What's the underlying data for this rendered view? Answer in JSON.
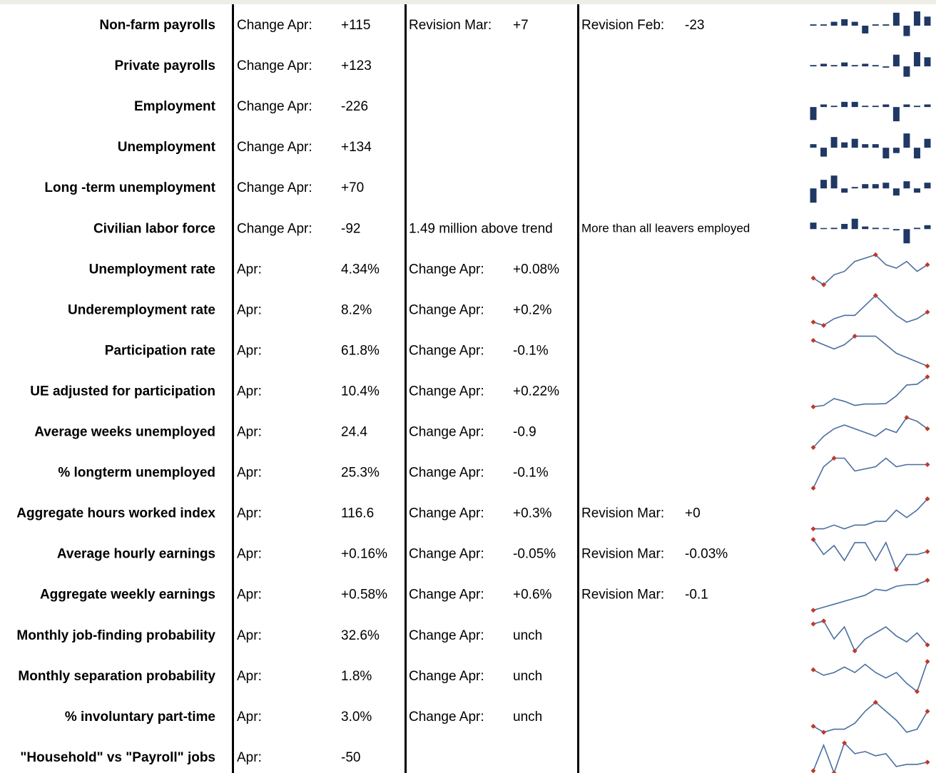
{
  "rows": [
    {
      "label": "Non-farm payrolls",
      "c2": [
        "Change Apr:",
        "+115"
      ],
      "c3": [
        "Revision Mar:",
        "+7"
      ],
      "c4": [
        "Revision Feb:",
        "-23"
      ],
      "spark": {
        "type": "bar",
        "values": [
          1,
          1,
          3,
          5,
          3,
          -6,
          1,
          1,
          10,
          -8,
          11,
          7
        ]
      }
    },
    {
      "label": "Private payrolls",
      "c2": [
        "Change Apr:",
        "+123"
      ],
      "spark": {
        "type": "bar",
        "values": [
          1,
          2,
          1,
          3,
          1,
          2,
          1,
          -1,
          9,
          -8,
          11,
          7
        ]
      }
    },
    {
      "label": "Employment",
      "c2": [
        "Change Apr:",
        "-226"
      ],
      "spark": {
        "type": "bar",
        "values": [
          -10,
          2,
          1,
          4,
          4,
          1,
          1,
          2,
          -11,
          2,
          1,
          2
        ]
      }
    },
    {
      "label": "Unemployment",
      "c2": [
        "Change Apr:",
        "+134"
      ],
      "spark": {
        "type": "bar",
        "values": [
          2,
          -5,
          6,
          3,
          5,
          2,
          2,
          -6,
          -3,
          8,
          -6,
          5
        ]
      }
    },
    {
      "label": "Long -term unemployment",
      "c2": [
        "Change Apr:",
        "+70"
      ],
      "spark": {
        "type": "bar",
        "values": [
          -10,
          6,
          9,
          -3,
          1,
          3,
          3,
          4,
          -5,
          5,
          -3,
          4
        ]
      }
    },
    {
      "label": "Civilian labor force",
      "c2": [
        "Change Apr:",
        "-92"
      ],
      "c3": [
        "1.49 million above trend"
      ],
      "c4": [
        "More than all leavers employed"
      ],
      "spark": {
        "type": "bar",
        "values": [
          5,
          0,
          1,
          4,
          8,
          2,
          1,
          0,
          -1,
          -11,
          1,
          3
        ]
      }
    },
    {
      "label": "Unemployment rate",
      "c2": [
        "Apr:",
        "4.34%"
      ],
      "c3": [
        "Change Apr:",
        "+0.08%"
      ],
      "spark": {
        "type": "line",
        "values": [
          3,
          1,
          4,
          5,
          8,
          9,
          10,
          7,
          6,
          8,
          5,
          7
        ]
      }
    },
    {
      "label": "Underemployment rate",
      "c2": [
        "Apr:",
        "8.2%"
      ],
      "c3": [
        "Change Apr:",
        "+0.2%"
      ],
      "spark": {
        "type": "line",
        "values": [
          2,
          1,
          3,
          4,
          4,
          7,
          10,
          7,
          4,
          2,
          3,
          5
        ]
      }
    },
    {
      "label": "Participation rate",
      "c2": [
        "Apr:",
        "61.8%"
      ],
      "c3": [
        "Change Apr:",
        "-0.1%"
      ],
      "spark": {
        "type": "line",
        "values": [
          10,
          9,
          8,
          9,
          11,
          11,
          11,
          9,
          7,
          6,
          5,
          4
        ]
      }
    },
    {
      "label": "UE adjusted for participation",
      "c2": [
        "Apr:",
        "10.4%"
      ],
      "c3": [
        "Change Apr:",
        "+0.22%"
      ],
      "spark": {
        "type": "line",
        "values": [
          1,
          1.5,
          4,
          3,
          1.5,
          2,
          2,
          2.2,
          5,
          9,
          9.3,
          12
        ]
      }
    },
    {
      "label": "Average weeks unemployed",
      "c2": [
        "Apr:",
        "24.4"
      ],
      "c3": [
        "Change Apr:",
        "-0.9"
      ],
      "spark": {
        "type": "line",
        "values": [
          1,
          4,
          6,
          7,
          6,
          5,
          4,
          6,
          5,
          9,
          8,
          6
        ]
      }
    },
    {
      "label": "% longterm unemployed",
      "c2": [
        "Apr:",
        "25.3%"
      ],
      "c3": [
        "Change Apr:",
        "-0.1%"
      ],
      "spark": {
        "type": "line",
        "values": [
          1,
          6,
          8,
          8,
          5,
          5.5,
          6,
          8,
          6,
          6.5,
          6.5,
          6.5
        ]
      }
    },
    {
      "label": "Aggregate hours worked index",
      "c2": [
        "Apr:",
        "116.6"
      ],
      "c3": [
        "Change Apr:",
        "+0.3%"
      ],
      "c4": [
        "Revision Mar:",
        "+0"
      ],
      "spark": {
        "type": "line",
        "values": [
          1,
          1,
          2,
          1,
          2,
          2,
          3,
          3,
          6,
          4,
          6,
          9
        ]
      }
    },
    {
      "label": "Average hourly earnings",
      "c2": [
        "Apr:",
        "+0.16%"
      ],
      "c3": [
        "Change Apr:",
        "-0.05%"
      ],
      "c4": [
        "Revision Mar:",
        "-0.03%"
      ],
      "spark": {
        "type": "line",
        "values": [
          8,
          3,
          6,
          1,
          7,
          7,
          1,
          7,
          -2,
          3,
          3,
          4
        ]
      }
    },
    {
      "label": "Aggregate weekly earnings",
      "c2": [
        "Apr:",
        "+0.58%"
      ],
      "c3": [
        "Change Apr:",
        "+0.6%"
      ],
      "c4": [
        "Revision Mar:",
        "-0.1"
      ],
      "spark": {
        "type": "line",
        "values": [
          1,
          2,
          3,
          4,
          5,
          6,
          8,
          7.5,
          9,
          9.5,
          9.6,
          11
        ]
      }
    },
    {
      "label": "Monthly job-finding probability",
      "c2": [
        "Apr:",
        "32.6%"
      ],
      "c3": [
        "Change Apr:",
        "unch"
      ],
      "spark": {
        "type": "line",
        "values": [
          8,
          9,
          3,
          7,
          -1,
          3,
          5,
          7,
          4,
          2,
          5,
          1
        ]
      }
    },
    {
      "label": "Monthly separation probability",
      "c2": [
        "Apr:",
        "1.8%"
      ],
      "c3": [
        "Change Apr:",
        "unch"
      ],
      "spark": {
        "type": "line",
        "values": [
          7,
          5,
          6,
          8,
          6,
          9,
          6,
          4,
          6,
          2,
          -1,
          10
        ]
      }
    },
    {
      "label": "% involuntary part-time",
      "c2": [
        "Apr:",
        "3.0%"
      ],
      "c3": [
        "Change Apr:",
        "unch"
      ],
      "spark": {
        "type": "line",
        "values": [
          3,
          1,
          2,
          2,
          4,
          8,
          11,
          8,
          5,
          1,
          2,
          8
        ]
      }
    },
    {
      "label": "\"Household\" vs \"Payroll\" jobs",
      "c2": [
        "Apr:",
        "-50"
      ],
      "spark": {
        "type": "line",
        "values": [
          -3,
          9,
          -4,
          10,
          5,
          6,
          4,
          5,
          -1,
          0,
          0,
          1
        ]
      }
    }
  ]
}
